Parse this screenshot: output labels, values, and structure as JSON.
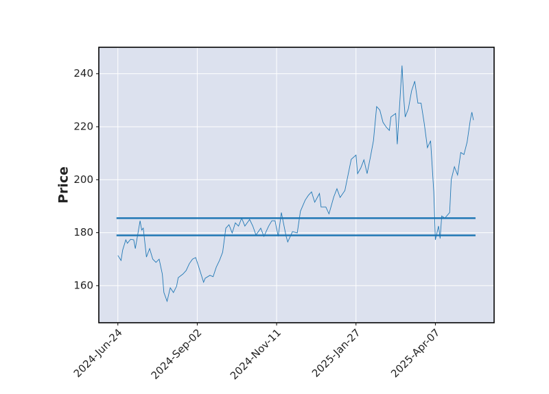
{
  "chart_data": {
    "type": "line",
    "y_label": "Price",
    "x": [
      0,
      2,
      3,
      5,
      6,
      8,
      10,
      11,
      14,
      15,
      16,
      18,
      20,
      22,
      24,
      26,
      28,
      29,
      31,
      33,
      35,
      37,
      38,
      41,
      43,
      45,
      47,
      49,
      51,
      54,
      55,
      58,
      60,
      62,
      64,
      66,
      68,
      70,
      72,
      74,
      76,
      78,
      80,
      83,
      85,
      87,
      90,
      92,
      95,
      97,
      99,
      101,
      103,
      106,
      107,
      110,
      113,
      115,
      118,
      120,
      122,
      124,
      127,
      128,
      131,
      133,
      136,
      138,
      140,
      143,
      145,
      147,
      150,
      151,
      153,
      155,
      157,
      159,
      161,
      163,
      165,
      167,
      169,
      171,
      172,
      175,
      176,
      179,
      180,
      181,
      183,
      185,
      187,
      189,
      191,
      193,
      195,
      197,
      199,
      200,
      202,
      203,
      204,
      206,
      209,
      210,
      212,
      214,
      216,
      218,
      220,
      222,
      223,
      224
    ],
    "series": [
      {
        "name": "Price",
        "color": "#1f77b4",
        "values": [
          171.4,
          169.5,
          173.4,
          177.3,
          176,
          177.5,
          177.3,
          174,
          184.5,
          181,
          181.7,
          170.8,
          174,
          170,
          168.8,
          170,
          164.4,
          157.4,
          154.1,
          159.2,
          157.4,
          159.8,
          163,
          164.4,
          165.7,
          168.3,
          170,
          170.6,
          167,
          161.3,
          162.8,
          163.9,
          163.4,
          167,
          169.5,
          172.6,
          181.7,
          183,
          179.9,
          183.7,
          182.5,
          185.5,
          182.5,
          185,
          182.5,
          179.1,
          181.7,
          178.6,
          182.5,
          184.5,
          184.5,
          178.6,
          187.6,
          178.6,
          176.5,
          180.4,
          179.9,
          188.1,
          192.3,
          194.1,
          195.4,
          191.5,
          194.8,
          189.7,
          189.7,
          187.1,
          193.5,
          196.6,
          193.3,
          195.9,
          201.8,
          207.7,
          209.3,
          202.3,
          204.4,
          207.5,
          202.3,
          208.3,
          214.7,
          227.6,
          226.3,
          221.7,
          219.9,
          218.6,
          223.7,
          225,
          213.4,
          243.1,
          231.5,
          223.7,
          226.8,
          233.5,
          237.2,
          228.9,
          228.9,
          221.2,
          212.1,
          214.7,
          195.4,
          177.3,
          182.5,
          177.8,
          186.3,
          185.5,
          187.6,
          200,
          204.9,
          201.8,
          210.3,
          209.5,
          214.2,
          222.5,
          225.5,
          222.5
        ]
      }
    ],
    "hlines": {
      "values": [
        185.5,
        179
      ],
      "color": "#1f77b4"
    },
    "xlim": [
      -12,
      237
    ],
    "xticks": [
      {
        "value": 0,
        "label": "2024-Jun-24"
      },
      {
        "value": 50,
        "label": "2024-Sep-02"
      },
      {
        "value": 100,
        "label": "2024-Nov-11"
      },
      {
        "value": 150,
        "label": "2025-Jan-27"
      },
      {
        "value": 200,
        "label": "2025-Apr-07"
      }
    ],
    "ylim": [
      146,
      250
    ],
    "yticks": [
      160,
      180,
      200,
      220,
      240
    ],
    "grid": true,
    "background": "#dce1ee"
  }
}
